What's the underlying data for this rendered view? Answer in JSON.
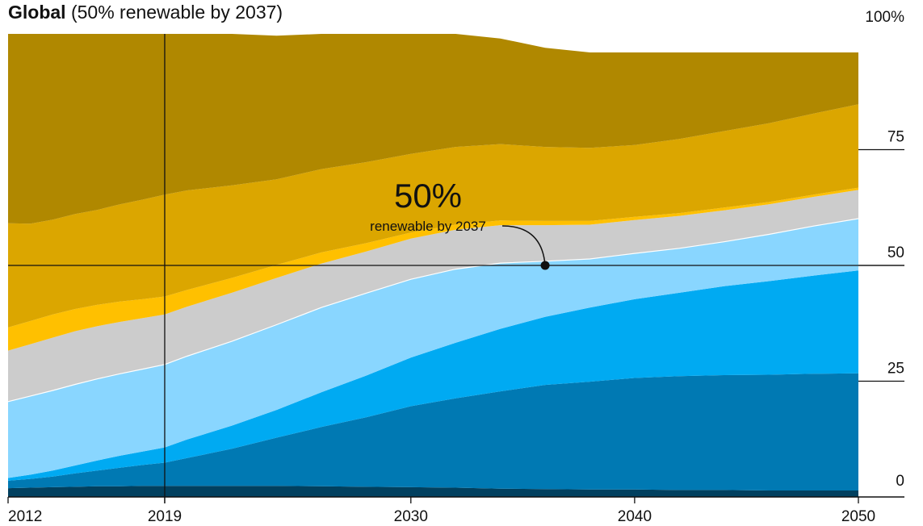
{
  "title": {
    "bold": "Global",
    "rest": "(50% renewable by 2037)"
  },
  "chart_data": {
    "type": "area",
    "stacked": true,
    "x": [
      2012,
      2013,
      2014,
      2015,
      2016,
      2017,
      2018,
      2019,
      2020,
      2022,
      2024,
      2026,
      2028,
      2030,
      2032,
      2034,
      2036,
      2038,
      2040,
      2042,
      2044,
      2046,
      2048,
      2050
    ],
    "ylim": [
      0,
      100
    ],
    "xlim": [
      2012,
      2050
    ],
    "series": [
      {
        "color": "#01405f",
        "values": [
          1.9,
          2.0,
          2.1,
          2.2,
          2.3,
          2.3,
          2.4,
          2.4,
          2.4,
          2.4,
          2.4,
          2.3,
          2.2,
          2.1,
          2.0,
          1.8,
          1.7,
          1.6,
          1.6,
          1.5,
          1.5,
          1.4,
          1.4,
          1.4
        ]
      },
      {
        "color": "#0079b3",
        "values": [
          1.6,
          1.9,
          2.3,
          2.9,
          3.4,
          4.0,
          4.5,
          5.0,
          6.0,
          8.0,
          10.4,
          12.8,
          15.0,
          17.5,
          19.3,
          21.0,
          22.5,
          23.3,
          24.1,
          24.6,
          24.8,
          25.0,
          25.2,
          25.3
        ]
      },
      {
        "color": "#00aaf2",
        "values": [
          0.6,
          0.9,
          1.3,
          1.7,
          2.2,
          2.6,
          2.9,
          3.3,
          4.0,
          5.0,
          6.0,
          7.5,
          9.0,
          10.5,
          12.0,
          13.5,
          14.7,
          16.0,
          17.0,
          18.0,
          19.2,
          20.2,
          21.2,
          22.2
        ]
      },
      {
        "color": "#89d6ff",
        "values": [
          16.5,
          17.0,
          17.3,
          17.5,
          17.6,
          17.7,
          17.8,
          17.9,
          18.0,
          18.2,
          18.4,
          18.3,
          17.8,
          16.9,
          15.9,
          14.2,
          12.0,
          10.5,
          9.9,
          9.6,
          9.6,
          10.1,
          10.7,
          11.2
        ]
      },
      {
        "color": "#cccccc",
        "values": [
          11.0,
          11.2,
          11.4,
          11.5,
          11.4,
          11.2,
          11.0,
          10.8,
          10.7,
          10.5,
          10.1,
          9.5,
          9.0,
          8.8,
          8.5,
          8.2,
          7.8,
          7.4,
          7.2,
          7.0,
          6.8,
          6.5,
          6.3,
          6.2
        ]
      },
      {
        "color": "#ffc000",
        "values": [
          5.0,
          5.0,
          5.0,
          4.8,
          4.6,
          4.4,
          4.1,
          3.9,
          3.6,
          3.2,
          2.8,
          2.4,
          1.8,
          1.3,
          1.1,
          1.0,
          0.9,
          0.8,
          0.7,
          0.6,
          0.6,
          0.5,
          0.5,
          0.5
        ]
      },
      {
        "color": "#dba600",
        "values": [
          22.5,
          21.0,
          20.5,
          20.5,
          20.5,
          21.0,
          21.5,
          22.0,
          21.5,
          20.0,
          18.5,
          18.0,
          17.5,
          17.0,
          16.8,
          16.5,
          16.0,
          15.8,
          15.5,
          16.0,
          16.5,
          17.0,
          17.5,
          18.0
        ]
      },
      {
        "color": "#b08800",
        "values": [
          40.9,
          41.0,
          40.1,
          38.9,
          38.0,
          36.8,
          35.8,
          34.7,
          33.8,
          32.7,
          31.0,
          29.2,
          27.7,
          25.9,
          24.4,
          22.8,
          21.4,
          20.6,
          20.0,
          18.7,
          17.0,
          15.3,
          13.2,
          11.2
        ]
      }
    ],
    "y_ticks": [
      "0",
      "25",
      "50",
      "75",
      "100%"
    ],
    "x_ticks": [
      "2012",
      "2019",
      "2030",
      "2040",
      "2050"
    ],
    "x_tick_values": [
      2012,
      2019,
      2030,
      2040,
      2050
    ],
    "y_tick_values": [
      0,
      25,
      50,
      75,
      100
    ],
    "reference_lines": {
      "vertical_x": 2019,
      "horizontal_y": 50
    },
    "annotation": {
      "big": "50%",
      "small": "renewable by 2037",
      "point": {
        "x": 2036,
        "y": 50
      }
    }
  }
}
